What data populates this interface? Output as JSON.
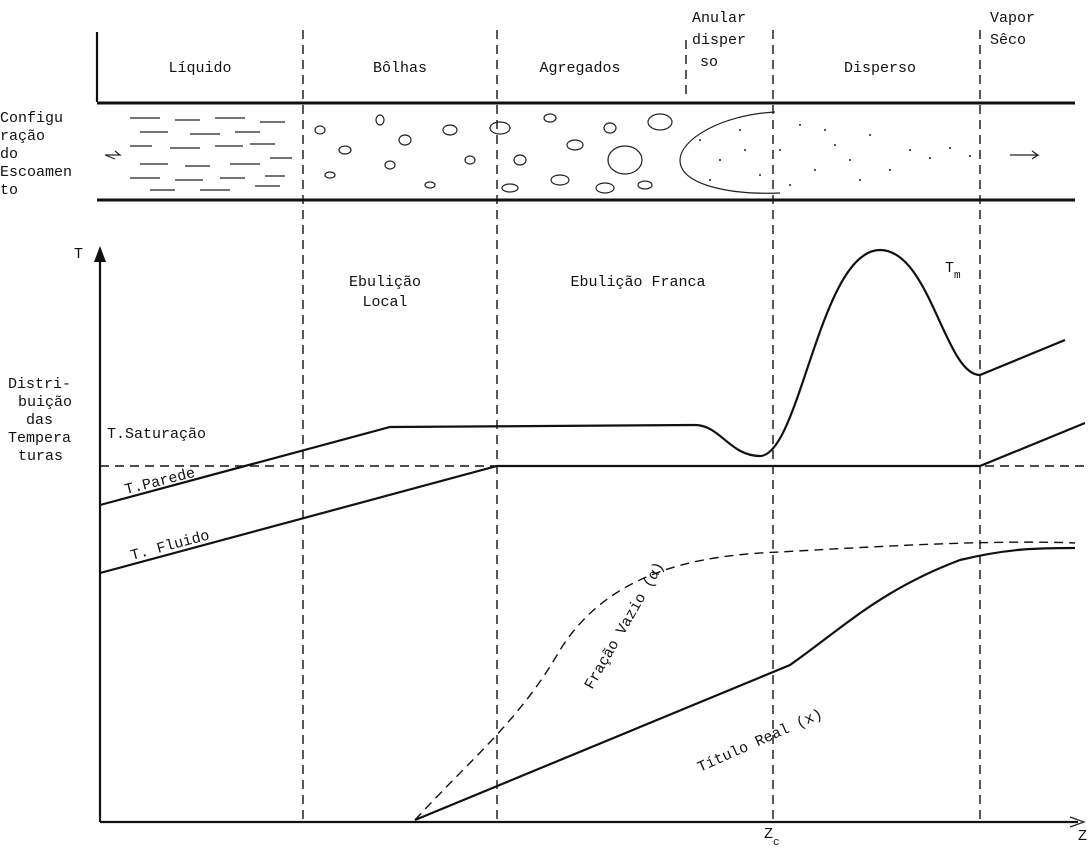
{
  "regions": {
    "liquid": "Líquido",
    "bubbles": "Bôlhas",
    "aggregates": "Agregados",
    "annular": [
      "Anular",
      "disper",
      "so"
    ],
    "dispersed": "Disperso",
    "dry_vapor": [
      "Vapor",
      "Sêco"
    ]
  },
  "flow_label": [
    "Configu",
    "ração",
    "do",
    "Escoamen",
    "to"
  ],
  "temperature_label": [
    "Distri-",
    "buição",
    "das",
    "Tempera",
    "turas"
  ],
  "axis": {
    "y_label": "T",
    "x_label": "Z",
    "zc": {
      "base": "Z",
      "sub": "c"
    }
  },
  "boiling": {
    "local": [
      "Ebulição",
      "Local"
    ],
    "saturated": "Ebulição Franca"
  },
  "curves": {
    "tm": {
      "base": "T",
      "sub": "m"
    },
    "saturation": "T.Saturação",
    "wall": "T.Parede",
    "fluid": "T. Fluido",
    "void_fraction": "Fração Vazio (α)",
    "quality": "Título Real (x)"
  }
}
